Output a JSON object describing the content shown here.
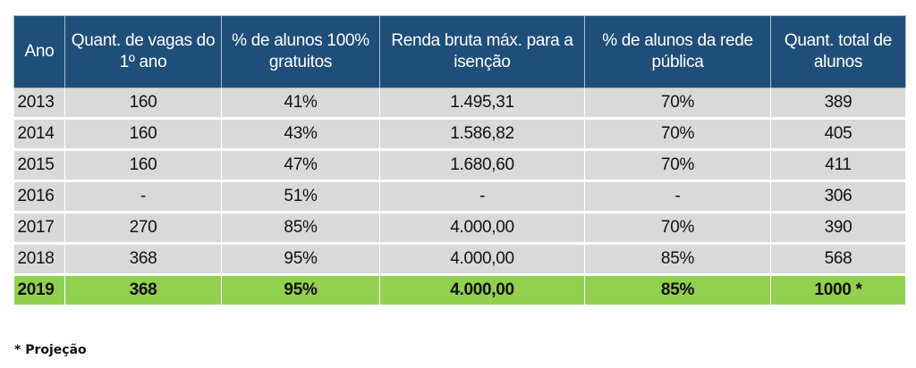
{
  "table": {
    "headers": [
      "Ano",
      "Quant. de vagas do 1º ano",
      "% de alunos 100% gratuitos",
      "Renda bruta máx. para a isenção",
      "% de alunos da rede pública",
      "Quant. total de alunos"
    ],
    "rows": [
      [
        "2013",
        "160",
        "41%",
        "1.495,31",
        "70%",
        "389"
      ],
      [
        "2014",
        "160",
        "43%",
        "1.586,82",
        "70%",
        "405"
      ],
      [
        "2015",
        "160",
        "47%",
        "1.680,60",
        "70%",
        "411"
      ],
      [
        "2016",
        "-",
        "51%",
        "-",
        "-",
        "306"
      ],
      [
        "2017",
        "270",
        "85%",
        "4.000,00",
        "70%",
        "390"
      ],
      [
        "2018",
        "368",
        "95%",
        "4.000,00",
        "85%",
        "568"
      ],
      [
        "2019",
        "368",
        "95%",
        "4.000,00",
        "85%",
        "1000 *"
      ]
    ],
    "highlight_color": "#92d050",
    "header_color": "#1f4e79"
  },
  "footnote": "* Projeção"
}
